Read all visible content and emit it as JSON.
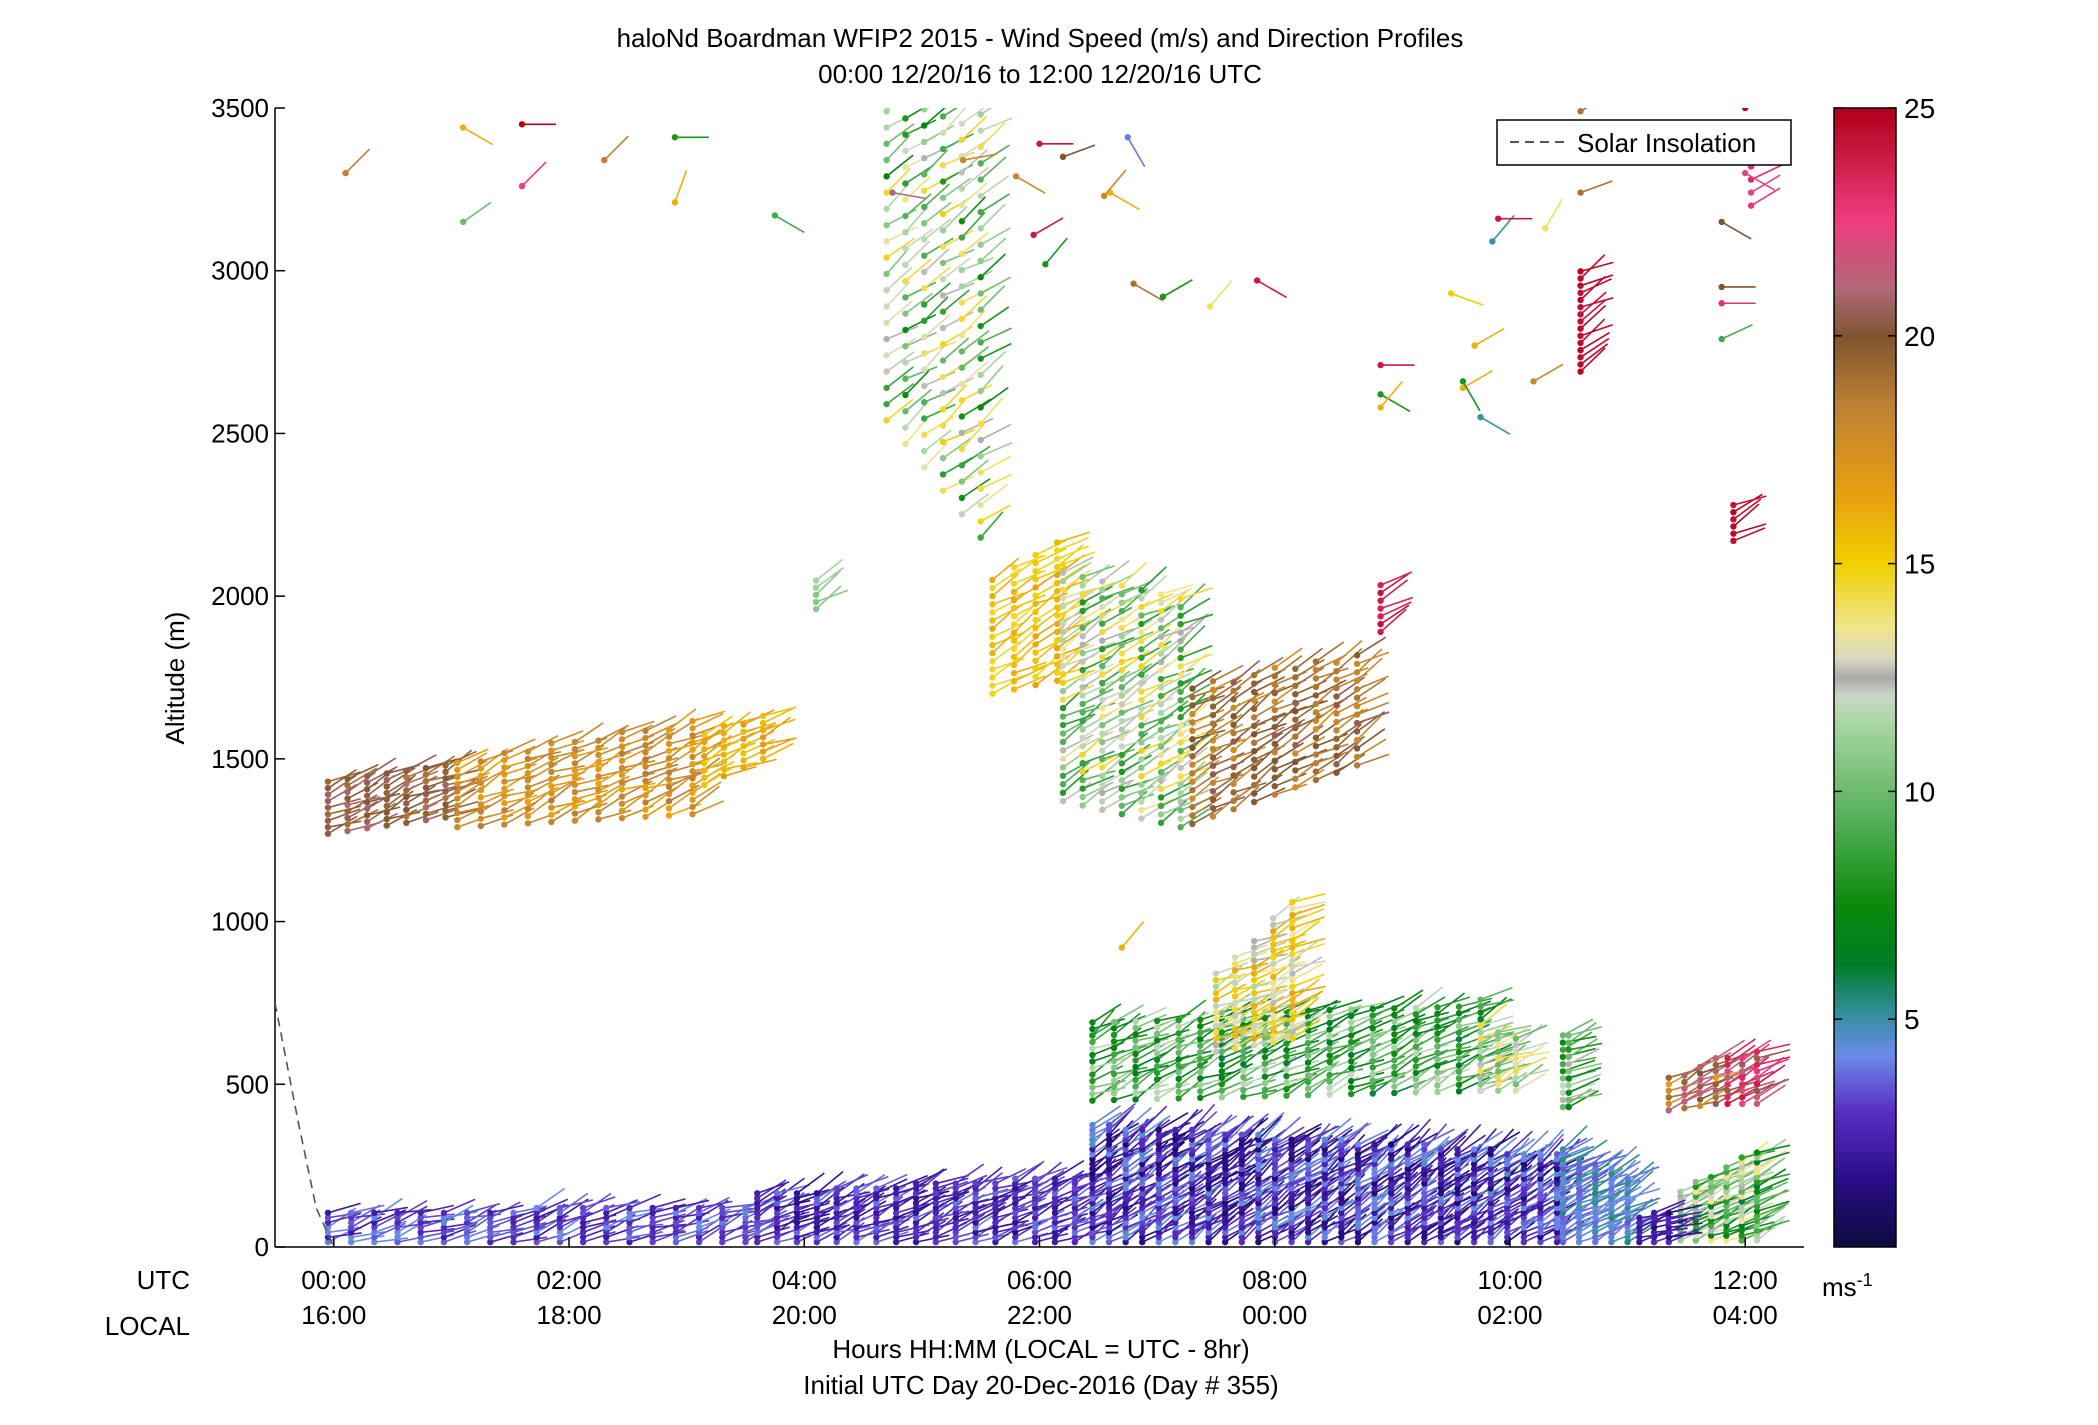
{
  "chart_data": {
    "type": "wind-barb-profile",
    "title": "haloNd Boardman WFIP2 2015 - Wind Speed (m/s) and Direction Profiles",
    "subtitle": "00:00 12/20/16 to 12:00 12/20/16  UTC",
    "xlabel": "Hours HH:MM  (LOCAL = UTC - 8hr)",
    "xlabel2": "Initial UTC Day 20-Dec-2016 (Day # 355)",
    "ylabel": "Altitude (m)",
    "row_labels": {
      "utc": "UTC",
      "local": "LOCAL"
    },
    "xlim_hours": [
      -0.5,
      12.5
    ],
    "ylim": [
      0,
      3500
    ],
    "y_ticks": [
      0,
      500,
      1000,
      1500,
      2000,
      2500,
      3000,
      3500
    ],
    "x_ticks": [
      {
        "hour": 0,
        "utc": "00:00",
        "local": "16:00"
      },
      {
        "hour": 2,
        "utc": "02:00",
        "local": "18:00"
      },
      {
        "hour": 4,
        "utc": "04:00",
        "local": "20:00"
      },
      {
        "hour": 6,
        "utc": "06:00",
        "local": "22:00"
      },
      {
        "hour": 8,
        "utc": "08:00",
        "local": "00:00"
      },
      {
        "hour": 10,
        "utc": "10:00",
        "local": "02:00"
      },
      {
        "hour": 12,
        "utc": "12:00",
        "local": "04:00"
      }
    ],
    "legend": {
      "label": "Solar Insolation",
      "placement": "top-right",
      "line_color": "#555555"
    },
    "solar_insolation": [
      [
        -0.5,
        750
      ],
      [
        -0.3,
        380
      ],
      [
        -0.15,
        120
      ],
      [
        0.0,
        0
      ]
    ],
    "colorbar": {
      "label": "ms-1",
      "ticks": [
        5,
        10,
        15,
        20,
        25
      ],
      "range": [
        0,
        25
      ],
      "stops": [
        {
          "v": 0,
          "c": "#0d0b3c"
        },
        {
          "v": 1.5,
          "c": "#2a0d8a"
        },
        {
          "v": 3,
          "c": "#5a2fc4"
        },
        {
          "v": 4.2,
          "c": "#6b8bea"
        },
        {
          "v": 5.2,
          "c": "#2f8e96"
        },
        {
          "v": 6.2,
          "c": "#007d28"
        },
        {
          "v": 7.5,
          "c": "#0a8a0a"
        },
        {
          "v": 9,
          "c": "#45a84a"
        },
        {
          "v": 11.5,
          "c": "#a9d6a3"
        },
        {
          "v": 12.1,
          "c": "#cdd6c8"
        },
        {
          "v": 12.5,
          "c": "#a9a9a9"
        },
        {
          "v": 12.9,
          "c": "#d8d8c0"
        },
        {
          "v": 13.6,
          "c": "#f0e68c"
        },
        {
          "v": 15,
          "c": "#f0cf00"
        },
        {
          "v": 16.5,
          "c": "#e8a010"
        },
        {
          "v": 18.5,
          "c": "#bd8035"
        },
        {
          "v": 20,
          "c": "#7d5530"
        },
        {
          "v": 21,
          "c": "#b06877"
        },
        {
          "v": 22.5,
          "c": "#ee3d7f"
        },
        {
          "v": 25,
          "c": "#b0001a"
        }
      ]
    },
    "barb_blocks": [
      {
        "t0": -0.05,
        "t1": 0.95,
        "dt": 0.18,
        "base0": 1270,
        "base1": 1320,
        "top0": 1440,
        "top1": 1490,
        "dz": 20,
        "speed": 20,
        "dir": 245,
        "spd_jit": 1.2
      },
      {
        "t0": 1.05,
        "t1": 3.05,
        "dt": 0.2,
        "base0": 1290,
        "base1": 1330,
        "top0": 1500,
        "top1": 1620,
        "dz": 22,
        "speed": 17.5,
        "dir": 245,
        "spd_jit": 1.2
      },
      {
        "t0": 3.15,
        "t1": 3.65,
        "dt": 0.2,
        "base0": 1420,
        "base1": 1500,
        "top0": 1590,
        "top1": 1640,
        "dz": 22,
        "speed": 16,
        "dir": 245,
        "spd_jit": 0.8
      },
      {
        "t0": 4.1,
        "t1": 4.1,
        "dt": 0.2,
        "base0": 1960,
        "base1": 1960,
        "top0": 2060,
        "top1": 2060,
        "dz": 22,
        "speed": 11,
        "dir": 240,
        "spd_jit": 0.5
      },
      {
        "t0": 4.7,
        "t1": 5.5,
        "dt": 0.15,
        "base0": 2540,
        "base1": 2180,
        "top0": 3500,
        "top1": 3500,
        "dz": 50,
        "speed": 11,
        "dir": 235,
        "spd_jit": 4
      },
      {
        "t0": 5.6,
        "t1": 6.15,
        "dt": 0.16,
        "base0": 1700,
        "base1": 1740,
        "top0": 2060,
        "top1": 2180,
        "dz": 25,
        "speed": 15.5,
        "dir": 240,
        "spd_jit": 1
      },
      {
        "t0": 6.2,
        "t1": 7.2,
        "dt": 0.18,
        "base0": 1370,
        "base1": 1290,
        "top0": 2100,
        "top1": 2000,
        "dz": 26,
        "speed": 11.5,
        "dir": 240,
        "spd_jit": 3.5
      },
      {
        "t0": 7.3,
        "t1": 8.7,
        "dt": 0.18,
        "base0": 1300,
        "base1": 1480,
        "top0": 1740,
        "top1": 1820,
        "dz": 26,
        "speed": 19,
        "dir": 240,
        "spd_jit": 1.5
      },
      {
        "t0": 8.9,
        "t1": 8.9,
        "dt": 0.2,
        "base0": 1890,
        "base1": 1890,
        "top0": 2050,
        "top1": 2050,
        "dz": 24,
        "speed": 24,
        "dir": 240,
        "spd_jit": 0.5
      },
      {
        "t0": 10.6,
        "t1": 10.6,
        "dt": 0.2,
        "base0": 2690,
        "base1": 2690,
        "top0": 3000,
        "top1": 3000,
        "dz": 22,
        "speed": 24.5,
        "dir": 240,
        "spd_jit": 0.3
      },
      {
        "t0": 11.9,
        "t1": 11.9,
        "dt": 0.2,
        "base0": 2170,
        "base1": 2170,
        "top0": 2280,
        "top1": 2280,
        "dz": 22,
        "speed": 24.5,
        "dir": 240,
        "spd_jit": 0.3
      },
      {
        "t0": 12.05,
        "t1": 12.05,
        "dt": 0.2,
        "base0": 3200,
        "base1": 3200,
        "top0": 3380,
        "top1": 3380,
        "dz": 40,
        "speed": 22.5,
        "dir": 240,
        "spd_jit": 1
      },
      {
        "t0": 6.45,
        "t1": 9.75,
        "dt": 0.18,
        "base0": 450,
        "base1": 480,
        "top0": 700,
        "top1": 760,
        "dz": 20,
        "speed": 9,
        "dir": 245,
        "spd_jit": 3
      },
      {
        "t0": 7.5,
        "t1": 8.15,
        "dt": 0.16,
        "base0": 600,
        "base1": 640,
        "top0": 840,
        "top1": 1070,
        "dz": 20,
        "speed": 14,
        "dir": 245,
        "spd_jit": 2.5
      },
      {
        "t0": 9.75,
        "t1": 10.05,
        "dt": 0.15,
        "base0": 480,
        "base1": 480,
        "top0": 690,
        "top1": 640,
        "dz": 20,
        "speed": 12,
        "dir": 245,
        "spd_jit": 2.5
      },
      {
        "t0": 10.45,
        "t1": 10.5,
        "dt": 0.1,
        "base0": 430,
        "base1": 430,
        "top0": 650,
        "top1": 650,
        "dz": 22,
        "speed": 10,
        "dir": 245,
        "spd_jit": 4
      },
      {
        "t0": 11.35,
        "t1": 11.75,
        "dt": 0.13,
        "base0": 420,
        "base1": 440,
        "top0": 520,
        "top1": 590,
        "dz": 20,
        "speed": 19,
        "dir": 245,
        "spd_jit": 2.5
      },
      {
        "t0": 11.85,
        "t1": 12.1,
        "dt": 0.12,
        "base0": 440,
        "base1": 440,
        "top0": 580,
        "top1": 610,
        "dz": 20,
        "speed": 22,
        "dir": 245,
        "spd_jit": 2
      },
      {
        "t0": 11.45,
        "t1": 12.1,
        "dt": 0.12,
        "base0": 20,
        "base1": 20,
        "top0": 180,
        "top1": 300,
        "dz": 15,
        "speed": 10,
        "dir": 245,
        "spd_jit": 4
      },
      {
        "t0": -0.05,
        "t1": 3.5,
        "dt": 0.2,
        "base0": 15,
        "base1": 15,
        "top0": 110,
        "top1": 130,
        "dz": 15,
        "speed": 3.2,
        "dir": 250,
        "spd_jit": 1.2
      },
      {
        "t0": 3.6,
        "t1": 6.3,
        "dt": 0.17,
        "base0": 15,
        "base1": 15,
        "top0": 170,
        "top1": 220,
        "dz": 15,
        "speed": 2.8,
        "dir": 245,
        "spd_jit": 1.2
      },
      {
        "t0": 6.45,
        "t1": 10.4,
        "dt": 0.14,
        "base0": 15,
        "base1": 15,
        "top0": 380,
        "top1": 290,
        "dz": 15,
        "speed": 2.8,
        "dir": 235,
        "spd_jit": 1.8
      },
      {
        "t0": 10.45,
        "t1": 11.0,
        "dt": 0.14,
        "base0": 15,
        "base1": 15,
        "top0": 300,
        "top1": 220,
        "dz": 15,
        "speed": 4.5,
        "dir": 240,
        "spd_jit": 1
      },
      {
        "t0": 11.1,
        "t1": 11.35,
        "dt": 0.12,
        "base0": 15,
        "base1": 15,
        "top0": 100,
        "top1": 110,
        "dz": 15,
        "speed": 2,
        "dir": 250,
        "spd_jit": 0.8
      }
    ],
    "scattered_barbs": [
      [
        0.1,
        3300,
        18.5,
        225
      ],
      [
        1.1,
        3150,
        10,
        235
      ],
      [
        1.1,
        3440,
        16,
        300
      ],
      [
        1.6,
        3450,
        25,
        270
      ],
      [
        1.6,
        3260,
        22.5,
        225
      ],
      [
        2.3,
        3340,
        18.5,
        225
      ],
      [
        2.9,
        3410,
        8,
        270
      ],
      [
        2.9,
        3210,
        16,
        200
      ],
      [
        3.75,
        3170,
        9,
        300
      ],
      [
        4.75,
        3240,
        21,
        280
      ],
      [
        5.35,
        3340,
        18,
        260
      ],
      [
        5.8,
        3290,
        18,
        300
      ],
      [
        6.0,
        3390,
        24,
        270
      ],
      [
        6.2,
        3350,
        20,
        250
      ],
      [
        6.05,
        3020,
        8,
        220
      ],
      [
        5.95,
        3110,
        24,
        240
      ],
      [
        6.6,
        3240,
        16,
        300
      ],
      [
        6.75,
        3410,
        4,
        330
      ],
      [
        6.8,
        2960,
        19,
        300
      ],
      [
        7.05,
        2920,
        8,
        240
      ],
      [
        7.45,
        2890,
        14,
        220
      ],
      [
        7.85,
        2970,
        24,
        300
      ],
      [
        8.9,
        2710,
        24,
        270
      ],
      [
        8.9,
        2620,
        8,
        300
      ],
      [
        8.9,
        2580,
        16,
        220
      ],
      [
        9.5,
        2930,
        15,
        290
      ],
      [
        9.6,
        2640,
        16,
        240
      ],
      [
        9.75,
        2550,
        5,
        300
      ],
      [
        9.6,
        2660,
        8,
        330
      ],
      [
        9.7,
        2770,
        16,
        240
      ],
      [
        9.85,
        3090,
        5,
        220
      ],
      [
        9.9,
        3160,
        24,
        270
      ],
      [
        10.2,
        2660,
        18,
        240
      ],
      [
        10.3,
        3130,
        14,
        210
      ],
      [
        10.6,
        3240,
        19,
        250
      ],
      [
        10.6,
        3490,
        19,
        240
      ],
      [
        11.8,
        2950,
        20,
        270
      ],
      [
        11.8,
        2790,
        9,
        245
      ],
      [
        11.8,
        3150,
        20,
        300
      ],
      [
        11.8,
        2900,
        23,
        270
      ],
      [
        12.0,
        3500,
        25,
        240
      ],
      [
        12.0,
        3300,
        22,
        300
      ],
      [
        11.95,
        3360,
        18,
        220
      ],
      [
        6.55,
        3230,
        18,
        220
      ],
      [
        6.45,
        650,
        8,
        220
      ],
      [
        6.7,
        920,
        16,
        220
      ]
    ]
  }
}
